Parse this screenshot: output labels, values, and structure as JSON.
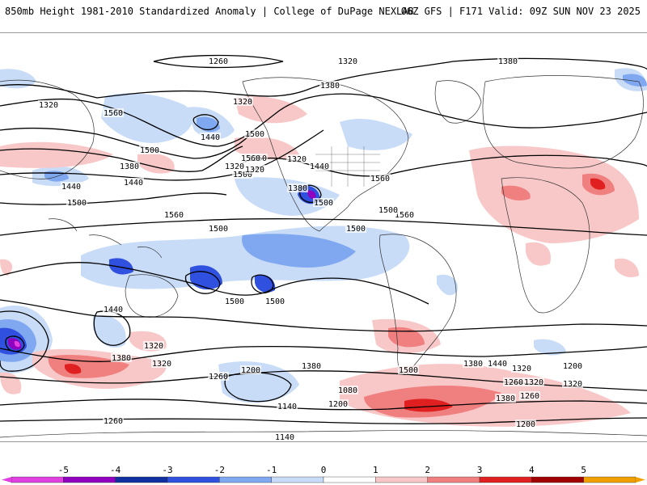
{
  "header": {
    "title": "850mb Height 1981-2010 Standardized Anomaly | College of DuPage NEXLAB",
    "run_info": "06Z GFS | F171 Valid: 09Z SUN NOV 23 2025"
  },
  "map": {
    "variable": "850mb Height",
    "units_note": "Standardized Anomaly",
    "contour_labels": [
      "1260",
      "1320",
      "1380",
      "1320",
      "1260",
      "1380",
      "1320",
      "1560",
      "1440",
      "1500",
      "1500",
      "1560",
      "1380",
      "1440",
      "1320",
      "1320",
      "1500",
      "1380",
      "1440",
      "1500",
      "1560",
      "1500",
      "1560",
      "1560",
      "1500",
      "1500",
      "1500",
      "1500",
      "1440",
      "1320",
      "1500",
      "1440",
      "1380",
      "1320",
      "1320",
      "1380",
      "1260",
      "1200",
      "1140",
      "1080",
      "1140",
      "1200",
      "1260",
      "1200",
      "1320",
      "1200",
      "1320",
      "1380",
      "1260",
      "1200",
      "1500",
      "1380",
      "1440",
      "1320",
      "1260",
      "1200"
    ]
  },
  "colorbar": {
    "ticks": [
      "-5",
      "-4",
      "-3",
      "-2",
      "-1",
      "0",
      "1",
      "2",
      "3",
      "4",
      "5"
    ],
    "colors": [
      "#e040e0",
      "#9000c0",
      "#1030a0",
      "#3050e0",
      "#80a8f0",
      "#c8dcf8",
      "#ffffff",
      "#f8c8c8",
      "#f08080",
      "#e02020",
      "#a00000",
      "#f0a000"
    ]
  }
}
